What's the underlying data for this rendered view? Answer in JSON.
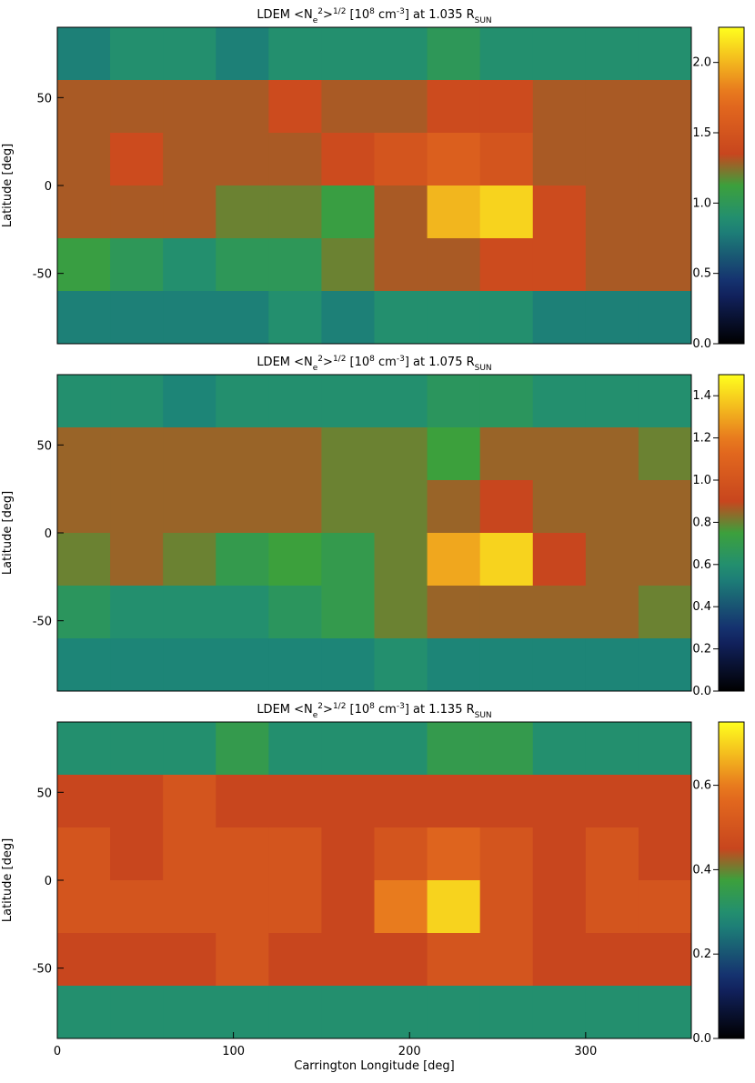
{
  "chart_data": [
    {
      "type": "heatmap",
      "title": [
        {
          "t": "LDEM <N"
        },
        {
          "sub": "e"
        },
        {
          "sup": "2"
        },
        {
          "t": ">"
        },
        {
          "sup": "1/2"
        },
        {
          "t": " [10"
        },
        {
          "sup": "8"
        },
        {
          "t": " cm"
        },
        {
          "sup": "-3"
        },
        {
          "t": "]  at  1.035 R"
        },
        {
          "sub": "SUN"
        }
      ],
      "ylabel": "Latitude [deg]",
      "xlim": [
        0,
        360
      ],
      "ylim": [
        -90,
        90
      ],
      "yticks": [
        -50,
        0,
        50
      ],
      "xbins": [
        0,
        30,
        60,
        90,
        120,
        150,
        180,
        210,
        240,
        270,
        300,
        330,
        360
      ],
      "ybins": [
        90,
        60,
        30,
        0,
        -30,
        -60,
        -90
      ],
      "zlim": [
        0,
        2.25
      ],
      "zticks": [
        {
          "value": 0,
          "label": "0.0"
        },
        0.5,
        {
          "value": 1,
          "label": "1.0"
        },
        1.5,
        {
          "value": 2,
          "label": "2.0"
        }
      ],
      "z": [
        [
          0.8,
          0.9,
          0.9,
          0.8,
          0.9,
          0.9,
          0.9,
          1.0,
          0.9,
          0.9,
          0.9,
          0.9
        ],
        [
          1.3,
          1.3,
          1.3,
          1.3,
          1.4,
          1.3,
          1.3,
          1.4,
          1.4,
          1.3,
          1.3,
          1.3
        ],
        [
          1.3,
          1.4,
          1.3,
          1.3,
          1.3,
          1.4,
          1.5,
          1.6,
          1.5,
          1.3,
          1.3,
          1.3
        ],
        [
          1.3,
          1.3,
          1.3,
          1.2,
          1.2,
          1.1,
          1.3,
          2.0,
          2.1,
          1.4,
          1.3,
          1.3
        ],
        [
          1.1,
          1.0,
          0.9,
          1.0,
          1.0,
          1.2,
          1.3,
          1.3,
          1.4,
          1.4,
          1.3,
          1.3
        ],
        [
          0.8,
          0.8,
          0.8,
          0.8,
          0.9,
          0.8,
          0.9,
          0.9,
          0.9,
          0.8,
          0.8,
          0.8
        ]
      ]
    },
    {
      "type": "heatmap",
      "title": [
        {
          "t": "LDEM <N"
        },
        {
          "sub": "e"
        },
        {
          "sup": "2"
        },
        {
          "t": ">"
        },
        {
          "sup": "1/2"
        },
        {
          "t": " [10"
        },
        {
          "sup": "8"
        },
        {
          "t": " cm"
        },
        {
          "sup": "-3"
        },
        {
          "t": "]  at  1.075 R"
        },
        {
          "sub": "SUN"
        }
      ],
      "ylabel": "Latitude [deg]",
      "xlim": [
        0,
        360
      ],
      "ylim": [
        -90,
        90
      ],
      "yticks": [
        -50,
        0,
        50
      ],
      "xbins": [
        0,
        30,
        60,
        90,
        120,
        150,
        180,
        210,
        240,
        270,
        300,
        330,
        360
      ],
      "ybins": [
        90,
        60,
        30,
        0,
        -30,
        -60,
        -90
      ],
      "zlim": [
        0,
        1.5
      ],
      "zticks": [
        {
          "value": 0,
          "label": "0.0"
        },
        0.2,
        0.4,
        0.6,
        0.8,
        {
          "value": 1,
          "label": "1.0"
        },
        1.2,
        1.4
      ],
      "z": [
        [
          0.6,
          0.6,
          0.55,
          0.6,
          0.6,
          0.6,
          0.6,
          0.65,
          0.65,
          0.6,
          0.6,
          0.6
        ],
        [
          0.85,
          0.85,
          0.85,
          0.85,
          0.85,
          0.8,
          0.8,
          0.75,
          0.85,
          0.85,
          0.85,
          0.8
        ],
        [
          0.85,
          0.85,
          0.85,
          0.85,
          0.85,
          0.8,
          0.8,
          0.85,
          0.9,
          0.85,
          0.85,
          0.85
        ],
        [
          0.8,
          0.85,
          0.8,
          0.7,
          0.75,
          0.7,
          0.8,
          1.3,
          1.4,
          0.9,
          0.85,
          0.85
        ],
        [
          0.65,
          0.6,
          0.6,
          0.6,
          0.65,
          0.7,
          0.8,
          0.85,
          0.85,
          0.85,
          0.85,
          0.8
        ],
        [
          0.55,
          0.55,
          0.55,
          0.55,
          0.55,
          0.55,
          0.6,
          0.55,
          0.55,
          0.55,
          0.55,
          0.55
        ]
      ]
    },
    {
      "type": "heatmap",
      "title": [
        {
          "t": "LDEM <N"
        },
        {
          "sub": "e"
        },
        {
          "sup": "2"
        },
        {
          "t": ">"
        },
        {
          "sup": "1/2"
        },
        {
          "t": " [10"
        },
        {
          "sup": "8"
        },
        {
          "t": " cm"
        },
        {
          "sup": "-3"
        },
        {
          "t": "]  at  1.135 R"
        },
        {
          "sub": "SUN"
        }
      ],
      "ylabel": "Latitude [deg]",
      "xlabel": "Carrington Longitude [deg]",
      "xlim": [
        0,
        360
      ],
      "ylim": [
        -90,
        90
      ],
      "xticks": [
        0,
        100,
        200,
        300
      ],
      "yticks": [
        -50,
        0,
        50
      ],
      "xbins": [
        0,
        30,
        60,
        90,
        120,
        150,
        180,
        210,
        240,
        270,
        300,
        330,
        360
      ],
      "ybins": [
        90,
        60,
        30,
        0,
        -30,
        -60,
        -90
      ],
      "zlim": [
        0,
        0.75
      ],
      "zticks": [
        {
          "value": 0,
          "label": "0.0"
        },
        0.2,
        0.4,
        0.6
      ],
      "z": [
        [
          0.3,
          0.3,
          0.3,
          0.35,
          0.3,
          0.3,
          0.3,
          0.35,
          0.35,
          0.3,
          0.3,
          0.3
        ],
        [
          0.45,
          0.45,
          0.5,
          0.45,
          0.45,
          0.45,
          0.45,
          0.45,
          0.45,
          0.45,
          0.45,
          0.45
        ],
        [
          0.5,
          0.45,
          0.5,
          0.5,
          0.5,
          0.45,
          0.5,
          0.55,
          0.5,
          0.45,
          0.5,
          0.45
        ],
        [
          0.5,
          0.5,
          0.5,
          0.5,
          0.5,
          0.45,
          0.6,
          0.7,
          0.5,
          0.45,
          0.5,
          0.5
        ],
        [
          0.45,
          0.45,
          0.45,
          0.5,
          0.45,
          0.45,
          0.45,
          0.5,
          0.5,
          0.45,
          0.45,
          0.45
        ],
        [
          0.3,
          0.3,
          0.3,
          0.3,
          0.3,
          0.3,
          0.3,
          0.3,
          0.3,
          0.3,
          0.3,
          0.3
        ]
      ]
    }
  ]
}
